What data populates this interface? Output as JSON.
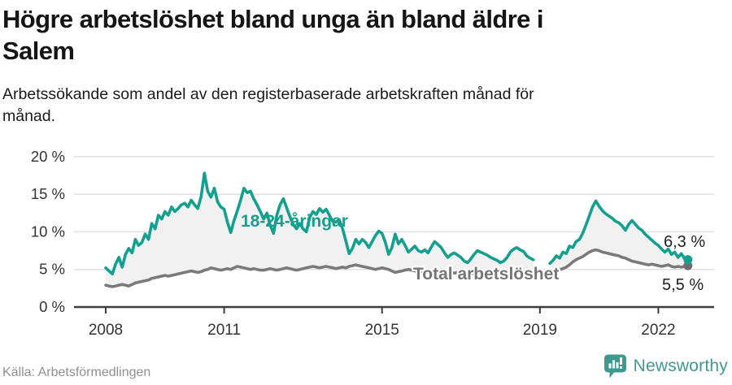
{
  "header": {
    "title_line1": "Högre arbetslöshet bland unga än bland äldre i",
    "title_line2": "Salem",
    "subtitle_line1": "Arbetssökande som andel av den registerbaserade arbetskraften månad för",
    "subtitle_line2": "månad."
  },
  "footer": {
    "source": "Källa: Arbetsförmedlingen",
    "brand": "Newsworthy"
  },
  "chart_data": {
    "type": "line",
    "title": "Högre arbetslöshet bland unga än bland äldre i Salem",
    "subtitle": "Arbetssökande som andel av den registerbaserade arbetskraften månad för månad.",
    "unit": "%",
    "x_monthly_from": "2008-01",
    "x_monthly_to": "2022-10",
    "ylim": [
      0,
      20
    ],
    "grid": true,
    "y_ticks": [
      {
        "value": 0,
        "label": "0 %"
      },
      {
        "value": 5,
        "label": "5 %"
      },
      {
        "value": 10,
        "label": "10 %"
      },
      {
        "value": 15,
        "label": "15 %"
      },
      {
        "value": 20,
        "label": "20 %"
      }
    ],
    "x_ticks": [
      {
        "year": 2008,
        "label": "2008"
      },
      {
        "year": 2011,
        "label": "2011"
      },
      {
        "year": 2015,
        "label": "2015"
      },
      {
        "year": 2019,
        "label": "2019"
      },
      {
        "year": 2022,
        "label": "2022"
      }
    ],
    "band_fill": "#f1f1f1",
    "series": [
      {
        "name": "18-24-åringar",
        "color": "#13a08f",
        "end_label": "6,3 %",
        "end_value": 6.3,
        "values": [
          5.2,
          4.8,
          4.4,
          5.7,
          6.6,
          5.3,
          7.0,
          7.8,
          7.2,
          9.0,
          8.2,
          8.6,
          9.7,
          9.0,
          11.1,
          10.4,
          12.2,
          11.7,
          12.7,
          12.2,
          13.3,
          12.7,
          13.1,
          13.6,
          13.8,
          13.3,
          14.2,
          13.6,
          13.1,
          14.7,
          17.8,
          15.4,
          14.6,
          15.8,
          14.0,
          13.3,
          13.0,
          11.3,
          9.9,
          11.5,
          12.8,
          14.2,
          15.8,
          15.2,
          15.4,
          14.4,
          13.6,
          12.7,
          11.7,
          12.5,
          10.9,
          9.8,
          12.2,
          13.6,
          14.4,
          13.2,
          12.0,
          11.0,
          10.4,
          11.1,
          10.4,
          10.0,
          11.9,
          12.7,
          12.3,
          13.1,
          12.6,
          13.0,
          12.2,
          11.4,
          11.3,
          11.6,
          10.4,
          8.8,
          7.1,
          7.8,
          9.0,
          8.4,
          9.0,
          8.6,
          7.9,
          8.7,
          9.5,
          10.1,
          9.8,
          8.6,
          7.0,
          7.9,
          9.7,
          8.4,
          9.0,
          8.2,
          7.3,
          7.7,
          8.1,
          7.5,
          7.3,
          7.6,
          7.2,
          8.0,
          8.7,
          8.3,
          7.9,
          7.2,
          6.6,
          7.0,
          7.2,
          6.9,
          6.6,
          6.1,
          5.9,
          6.4,
          7.0,
          7.5,
          7.3,
          7.1,
          6.9,
          6.6,
          6.4,
          6.2,
          5.9,
          6.1,
          6.6,
          7.3,
          7.7,
          7.9,
          7.6,
          7.4,
          6.8,
          6.5,
          6.3,
          null,
          null,
          null,
          null,
          5.8,
          6.2,
          6.8,
          6.5,
          7.3,
          7.1,
          8.1,
          7.9,
          8.7,
          9.0,
          9.8,
          10.9,
          12.1,
          13.3,
          14.1,
          13.4,
          12.8,
          12.4,
          12.1,
          11.8,
          11.4,
          11.2,
          10.8,
          10.2,
          11.0,
          11.5,
          11.0,
          10.5,
          10.2,
          9.7,
          9.3,
          8.9,
          8.5,
          8.2,
          7.7,
          7.3,
          7.7,
          7.0,
          7.3,
          6.6,
          7.1,
          6.4,
          6.3
        ]
      },
      {
        "name": "Total arbetslöshet",
        "color": "#7a7a7a",
        "end_label": "5,5 %",
        "end_value": 5.5,
        "values": [
          2.9,
          2.8,
          2.7,
          2.8,
          2.9,
          3.0,
          2.9,
          2.8,
          3.0,
          3.2,
          3.3,
          3.4,
          3.5,
          3.6,
          3.8,
          3.9,
          4.0,
          4.1,
          4.2,
          4.1,
          4.2,
          4.3,
          4.4,
          4.5,
          4.6,
          4.7,
          4.8,
          4.7,
          4.6,
          4.7,
          4.9,
          5.0,
          5.2,
          5.1,
          5.0,
          4.9,
          5.0,
          5.1,
          5.0,
          5.2,
          5.4,
          5.3,
          5.2,
          5.1,
          5.0,
          5.1,
          5.0,
          4.9,
          4.9,
          5.0,
          5.1,
          5.0,
          4.9,
          5.0,
          5.1,
          5.2,
          5.1,
          5.0,
          4.9,
          5.0,
          5.1,
          5.2,
          5.3,
          5.4,
          5.3,
          5.2,
          5.3,
          5.4,
          5.3,
          5.2,
          5.1,
          5.2,
          5.3,
          5.2,
          5.4,
          5.5,
          5.6,
          5.5,
          5.4,
          5.3,
          5.2,
          5.1,
          5.0,
          5.1,
          5.2,
          5.1,
          5.0,
          4.8,
          4.6,
          4.7,
          4.8,
          4.9,
          5.0,
          4.9,
          4.8,
          4.7,
          4.7,
          4.8,
          4.7,
          4.6,
          4.7,
          4.8,
          4.7,
          4.6,
          4.5,
          4.6,
          4.5,
          4.6,
          4.5,
          4.6,
          4.5,
          4.4,
          4.5,
          4.6,
          4.5,
          4.4,
          4.5,
          4.6,
          4.5,
          4.6,
          4.6,
          4.6,
          4.7,
          4.6,
          4.5,
          4.6,
          4.7,
          4.6,
          4.5,
          4.6,
          4.7,
          null,
          null,
          null,
          null,
          4.8,
          4.9,
          4.8,
          5.0,
          5.1,
          5.3,
          5.6,
          6.0,
          6.3,
          6.5,
          6.7,
          7.0,
          7.3,
          7.5,
          7.6,
          7.5,
          7.3,
          7.2,
          7.1,
          7.0,
          6.9,
          6.8,
          6.6,
          6.5,
          6.3,
          6.1,
          6.0,
          5.9,
          5.8,
          5.7,
          5.6,
          5.7,
          5.6,
          5.5,
          5.4,
          5.5,
          5.6,
          5.4,
          5.3,
          5.4,
          5.3,
          5.4,
          5.5
        ]
      }
    ]
  }
}
